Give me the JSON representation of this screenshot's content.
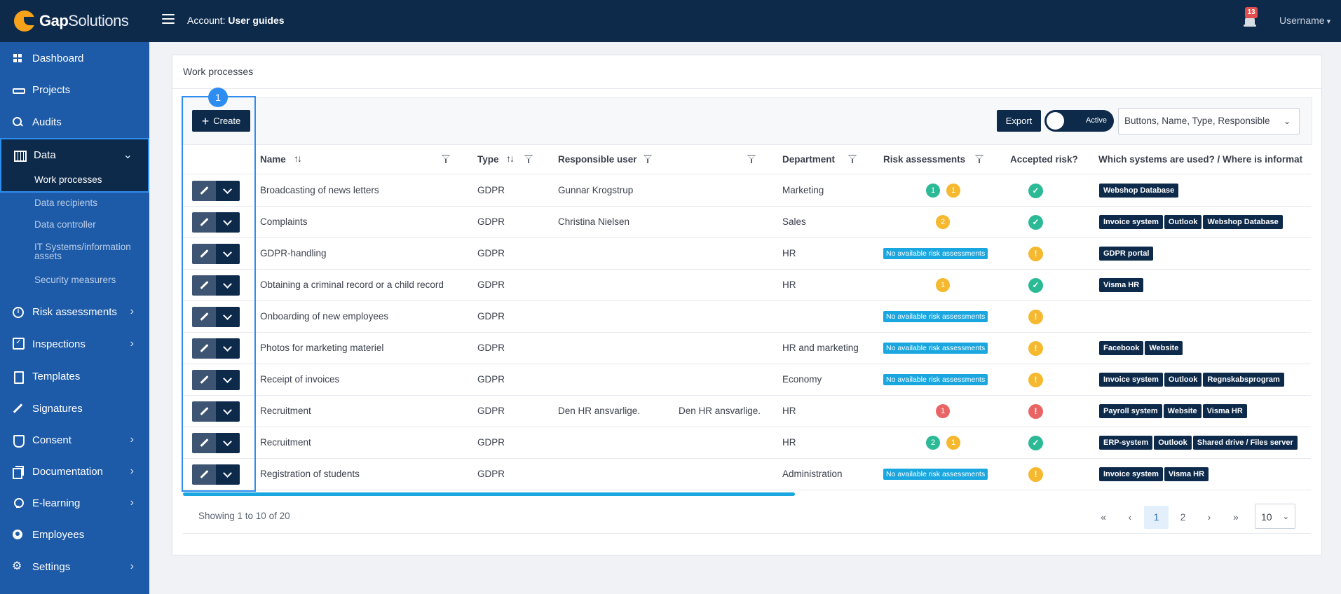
{
  "header": {
    "logo_bold": "Gap",
    "logo_light": "Solutions",
    "account_label": "Account:",
    "account_name": "User guides",
    "notification_count": "13",
    "username": "Username"
  },
  "sidebar": {
    "items": [
      {
        "label": "Dashboard",
        "icon": "dashboard-icon"
      },
      {
        "label": "Projects",
        "icon": "projects-icon"
      },
      {
        "label": "Audits",
        "icon": "search-icon"
      },
      {
        "label": "Data",
        "icon": "table-icon"
      },
      {
        "label": "Risk assessments",
        "icon": "info-icon"
      },
      {
        "label": "Inspections",
        "icon": "checkbox-icon"
      },
      {
        "label": "Templates",
        "icon": "document-icon"
      },
      {
        "label": "Signatures",
        "icon": "pen-icon"
      },
      {
        "label": "Consent",
        "icon": "shield-icon"
      },
      {
        "label": "Documentation",
        "icon": "files-icon"
      },
      {
        "label": "E-learning",
        "icon": "bulb-icon"
      },
      {
        "label": "Employees",
        "icon": "user-icon"
      },
      {
        "label": "Settings",
        "icon": "gear-icon"
      }
    ],
    "data_subitems": [
      "Work processes",
      "Data recipients",
      "Data controller",
      "IT Systems/information assets",
      "Security measurers"
    ]
  },
  "card": {
    "title": "Work processes",
    "step_number": "1",
    "create_label": "Create",
    "export_label": "Export",
    "toggle_label": "Active",
    "columns_select": "Buttons, Name, Type, Responsible"
  },
  "table": {
    "headers": {
      "name": "Name",
      "type": "Type",
      "responsible": "Responsible user",
      "department": "Department",
      "risk": "Risk assessments",
      "accepted": "Accepted risk?",
      "systems": "Which systems are used? / Where is informat"
    },
    "no_risk_label": "No available risk assessments",
    "rows": [
      {
        "name": "Broadcasting of news letters",
        "type": "GDPR",
        "responsible": "Gunnar Krogstrup",
        "responsible2": "",
        "department": "Marketing",
        "risk": [
          {
            "color": "green",
            "n": "1"
          },
          {
            "color": "yellow",
            "n": "1"
          }
        ],
        "accepted": "green",
        "systems": [
          "Webshop Database"
        ]
      },
      {
        "name": "Complaints",
        "type": "GDPR",
        "responsible": "Christina Nielsen",
        "responsible2": "",
        "department": "Sales",
        "risk": [
          {
            "color": "yellow",
            "n": "2"
          }
        ],
        "accepted": "green",
        "systems": [
          "Invoice system",
          "Outlook",
          "Webshop Database"
        ]
      },
      {
        "name": "GDPR-handling",
        "type": "GDPR",
        "responsible": "",
        "responsible2": "",
        "department": "HR",
        "risk": [],
        "accepted": "yellow",
        "systems": [
          "GDPR portal"
        ]
      },
      {
        "name": "Obtaining a criminal record or a child record",
        "type": "GDPR",
        "responsible": "",
        "responsible2": "",
        "department": "HR",
        "risk": [
          {
            "color": "yellow",
            "n": "1"
          }
        ],
        "accepted": "green",
        "systems": [
          "Visma HR"
        ]
      },
      {
        "name": "Onboarding of new employees",
        "type": "GDPR",
        "responsible": "",
        "responsible2": "",
        "department": "",
        "risk": [],
        "accepted": "yellow",
        "systems": []
      },
      {
        "name": "Photos for marketing materiel",
        "type": "GDPR",
        "responsible": "",
        "responsible2": "",
        "department": "HR and marketing",
        "risk": [],
        "accepted": "yellow",
        "systems": [
          "Facebook",
          "Website"
        ]
      },
      {
        "name": "Receipt of invoices",
        "type": "GDPR",
        "responsible": "",
        "responsible2": "",
        "department": "Economy",
        "risk": [],
        "accepted": "yellow",
        "systems": [
          "Invoice system",
          "Outlook",
          "Regnskabsprogram"
        ]
      },
      {
        "name": "Recruitment",
        "type": "GDPR",
        "responsible": "Den HR ansvarlige.",
        "responsible2": "Den HR ansvarlige.",
        "department": "HR",
        "risk": [
          {
            "color": "red",
            "n": "1"
          }
        ],
        "accepted": "red",
        "systems": [
          "Payroll system",
          "Website",
          "Visma HR"
        ]
      },
      {
        "name": "Recruitment",
        "type": "GDPR",
        "responsible": "",
        "responsible2": "",
        "department": "HR",
        "risk": [
          {
            "color": "green",
            "n": "2"
          },
          {
            "color": "yellow",
            "n": "1"
          }
        ],
        "accepted": "green",
        "systems": [
          "ERP-system",
          "Outlook",
          "Shared drive / Files server"
        ]
      },
      {
        "name": "Registration of students",
        "type": "GDPR",
        "responsible": "",
        "responsible2": "",
        "department": "Administration",
        "risk": [],
        "accepted": "yellow",
        "systems": [
          "Invoice system",
          "Visma HR"
        ]
      }
    ]
  },
  "footer": {
    "showing": "Showing 1 to 10 of 20",
    "first": "«",
    "prev": "‹",
    "pages": [
      "1",
      "2"
    ],
    "next": "›",
    "last": "»",
    "page_size": "10"
  },
  "colors": {
    "navy": "#0d2a4b",
    "sidebar_blue": "#1d5aa7",
    "highlight": "#2e8df0",
    "green": "#2bb996",
    "yellow": "#f5b82e",
    "red": "#e96565",
    "cyan": "#1aa7e0"
  }
}
